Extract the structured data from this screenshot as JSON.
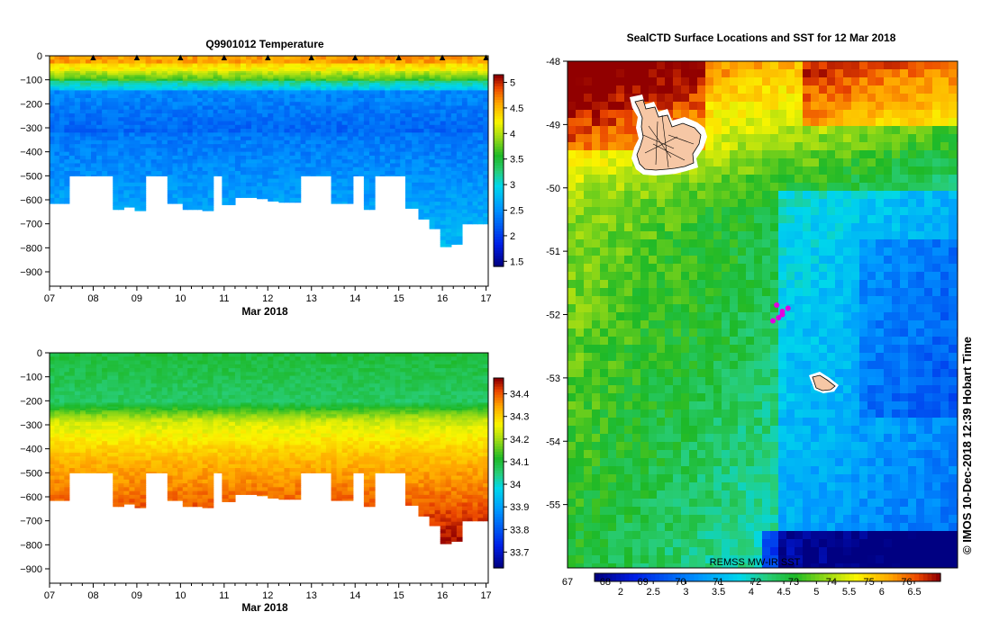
{
  "chart_data": [
    {
      "type": "heatmap",
      "id": "temperature",
      "title": "Q9901012  Temperature",
      "xlabel": "Mar 2018",
      "x_ticks": [
        "07",
        "08",
        "09",
        "10",
        "11",
        "12",
        "13",
        "14",
        "15",
        "16",
        "17"
      ],
      "y_ticks": [
        "0",
        "−100",
        "−200",
        "−300",
        "−400",
        "−500",
        "−600",
        "−700",
        "−800",
        "−900"
      ],
      "y_values": [
        0,
        -100,
        -200,
        -300,
        -400,
        -500,
        -600,
        -700,
        -800,
        -900
      ],
      "xlim": [
        7,
        17.05
      ],
      "ylim": [
        -960,
        0
      ],
      "colorbar_ticks": [
        "1.5",
        "2",
        "2.5",
        "3",
        "3.5",
        "4",
        "4.5",
        "5"
      ],
      "colorbar_values": [
        1.5,
        2,
        2.5,
        3,
        3.5,
        4,
        4.5,
        5
      ],
      "colorbar_range": [
        1.4,
        5.15
      ],
      "profile_markers_days": [
        8,
        9,
        10,
        11,
        12,
        13,
        14,
        15,
        16,
        17
      ],
      "profiles": [
        {
          "day": 7.0,
          "depth": 615
        },
        {
          "day": 7.45,
          "depth": 500
        },
        {
          "day": 8.45,
          "depth": 640
        },
        {
          "day": 8.7,
          "depth": 630
        },
        {
          "day": 8.95,
          "depth": 645
        },
        {
          "day": 9.2,
          "depth": 500
        },
        {
          "day": 9.7,
          "depth": 615
        },
        {
          "day": 10.05,
          "depth": 640
        },
        {
          "day": 10.5,
          "depth": 645
        },
        {
          "day": 10.75,
          "depth": 500
        },
        {
          "day": 10.95,
          "depth": 620
        },
        {
          "day": 11.25,
          "depth": 590
        },
        {
          "day": 11.75,
          "depth": 595
        },
        {
          "day": 12.0,
          "depth": 605
        },
        {
          "day": 12.25,
          "depth": 610
        },
        {
          "day": 12.75,
          "depth": 500
        },
        {
          "day": 13.45,
          "depth": 615
        },
        {
          "day": 13.95,
          "depth": 500
        },
        {
          "day": 14.2,
          "depth": 640
        },
        {
          "day": 14.45,
          "depth": 500
        },
        {
          "day": 15.15,
          "depth": 635
        },
        {
          "day": 15.45,
          "depth": 680
        },
        {
          "day": 15.7,
          "depth": 720
        },
        {
          "day": 15.95,
          "depth": 795
        },
        {
          "day": 16.2,
          "depth": 785
        },
        {
          "day": 16.45,
          "depth": 700
        }
      ]
    },
    {
      "type": "heatmap",
      "id": "salinity",
      "xlabel": "Mar 2018",
      "x_ticks": [
        "07",
        "08",
        "09",
        "10",
        "11",
        "12",
        "13",
        "14",
        "15",
        "16",
        "17"
      ],
      "y_ticks": [
        "0",
        "−100",
        "−200",
        "−300",
        "−400",
        "−500",
        "−600",
        "−700",
        "−800",
        "−900"
      ],
      "y_values": [
        0,
        -100,
        -200,
        -300,
        -400,
        -500,
        -600,
        -700,
        -800,
        -900
      ],
      "xlim": [
        7,
        17.05
      ],
      "ylim": [
        -960,
        0
      ],
      "colorbar_ticks": [
        "33.7",
        "33.8",
        "33.9",
        "34",
        "34.1",
        "34.2",
        "34.3",
        "34.4"
      ],
      "colorbar_values": [
        33.7,
        33.8,
        33.9,
        34.0,
        34.1,
        34.2,
        34.3,
        34.4
      ],
      "colorbar_range": [
        33.63,
        34.47
      ]
    },
    {
      "type": "heatmap",
      "id": "sst_map",
      "title": "SealCTD Surface Locations and SST for 12 Mar 2018",
      "x_ticks": [
        "67",
        "68",
        "69",
        "70",
        "71",
        "72",
        "73",
        "74",
        "75",
        "76"
      ],
      "x_values": [
        67,
        68,
        69,
        70,
        71,
        72,
        73,
        74,
        75,
        76
      ],
      "y_ticks": [
        "-48",
        "-49",
        "-50",
        "-51",
        "-52",
        "-53",
        "-54",
        "-55"
      ],
      "y_values": [
        -48,
        -49,
        -50,
        -51,
        -52,
        -53,
        -54,
        -55
      ],
      "xlim": [
        67,
        77.35
      ],
      "ylim": [
        -56,
        -48
      ],
      "colorbar_ticks": [
        "2",
        "2.5",
        "3",
        "3.5",
        "4",
        "4.5",
        "5",
        "5.5",
        "6",
        "6.5"
      ],
      "colorbar_values": [
        2,
        2.5,
        3,
        3.5,
        4,
        4.5,
        5,
        5.5,
        6,
        6.5
      ],
      "colorbar_range": [
        1.6,
        6.9
      ],
      "annotation": "REMSS MW-IR SST",
      "side_label": "© IMOS 10-Dec-2018 12:39 Hobart Time",
      "locations": [
        {
          "lon": 72.55,
          "lat": -51.85
        },
        {
          "lon": 72.7,
          "lat": -51.95
        },
        {
          "lon": 72.6,
          "lat": -52.05
        },
        {
          "lon": 72.85,
          "lat": -51.9
        },
        {
          "lon": 72.45,
          "lat": -52.1
        },
        {
          "lon": 72.7,
          "lat": -52.0
        }
      ]
    }
  ]
}
